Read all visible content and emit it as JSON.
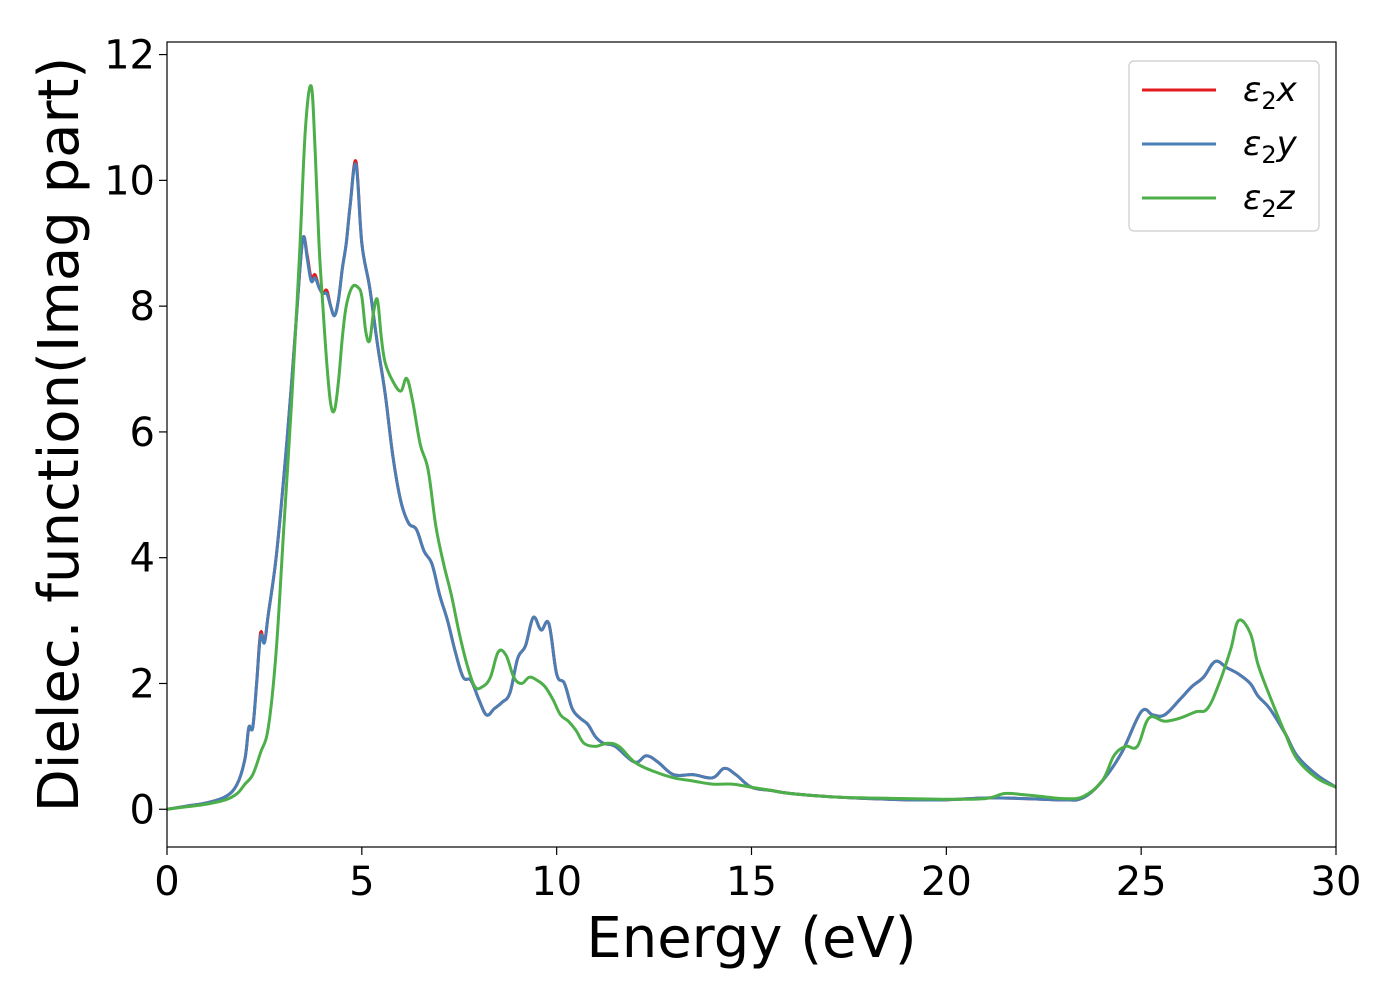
{
  "chart_data": {
    "type": "line",
    "xlabel": "Energy (eV)",
    "ylabel": "Dielec. function(Imag part)",
    "xlim": [
      0,
      30
    ],
    "ylim": [
      -0.6,
      12.2
    ],
    "xticks": [
      0,
      5,
      10,
      15,
      20,
      25,
      30
    ],
    "yticks": [
      0,
      2,
      4,
      6,
      8,
      10,
      12
    ],
    "grid": false,
    "legend_position": "top-right",
    "series": [
      {
        "name": "ε₂x",
        "legend_main": "ε",
        "legend_sub": "2",
        "legend_suffix": "x",
        "color": "#e41a1c",
        "x": [
          0,
          0.5,
          1,
          1.5,
          1.8,
          2,
          2.1,
          2.2,
          2.3,
          2.4,
          2.5,
          2.6,
          2.8,
          3,
          3.2,
          3.4,
          3.5,
          3.6,
          3.7,
          3.8,
          3.9,
          4,
          4.1,
          4.2,
          4.3,
          4.4,
          4.5,
          4.6,
          4.7,
          4.85,
          5,
          5.2,
          5.4,
          5.6,
          5.8,
          6,
          6.2,
          6.4,
          6.6,
          6.8,
          7,
          7.2,
          7.4,
          7.6,
          7.8,
          8,
          8.2,
          8.4,
          8.6,
          8.8,
          9,
          9.2,
          9.4,
          9.6,
          9.8,
          10,
          10.2,
          10.4,
          10.6,
          10.8,
          11,
          11.2,
          11.5,
          12,
          12.3,
          12.6,
          13,
          13.5,
          14,
          14.3,
          14.6,
          15,
          15.5,
          16,
          17,
          18,
          19,
          20,
          21,
          22,
          23,
          23.5,
          24,
          24.5,
          25,
          25.3,
          25.6,
          26,
          26.3,
          26.6,
          26.9,
          27.2,
          27.5,
          27.8,
          28,
          28.3,
          28.7,
          29,
          29.5,
          30
        ],
        "y": [
          0,
          0.05,
          0.1,
          0.2,
          0.4,
          0.8,
          1.3,
          1.3,
          2,
          2.8,
          2.65,
          3.1,
          4,
          5.3,
          6.8,
          8.5,
          9.1,
          8.8,
          8.45,
          8.5,
          8.3,
          8.2,
          8.25,
          8.0,
          7.85,
          8.1,
          8.6,
          9.0,
          9.6,
          10.3,
          9.0,
          8.3,
          7.4,
          6.6,
          5.6,
          4.9,
          4.55,
          4.45,
          4.1,
          3.9,
          3.4,
          3.0,
          2.5,
          2.1,
          2.05,
          1.75,
          1.5,
          1.6,
          1.7,
          1.85,
          2.4,
          2.6,
          3.05,
          2.85,
          2.95,
          2.15,
          2.0,
          1.6,
          1.45,
          1.35,
          1.15,
          1.05,
          1.0,
          0.75,
          0.85,
          0.75,
          0.55,
          0.55,
          0.5,
          0.65,
          0.55,
          0.35,
          0.3,
          0.25,
          0.2,
          0.17,
          0.15,
          0.15,
          0.18,
          0.17,
          0.15,
          0.18,
          0.45,
          0.9,
          1.55,
          1.5,
          1.5,
          1.75,
          1.95,
          2.1,
          2.35,
          2.25,
          2.15,
          2.0,
          1.8,
          1.6,
          1.2,
          0.85,
          0.55,
          0.35
        ]
      },
      {
        "name": "ε₂y",
        "legend_main": "ε",
        "legend_sub": "2",
        "legend_suffix": "y",
        "color": "#4a7fb5",
        "x": [
          0,
          0.5,
          1,
          1.5,
          1.8,
          2,
          2.1,
          2.2,
          2.3,
          2.4,
          2.5,
          2.6,
          2.8,
          3,
          3.2,
          3.4,
          3.5,
          3.6,
          3.7,
          3.8,
          3.9,
          4,
          4.1,
          4.2,
          4.3,
          4.4,
          4.5,
          4.6,
          4.7,
          4.85,
          5,
          5.2,
          5.4,
          5.6,
          5.8,
          6,
          6.2,
          6.4,
          6.6,
          6.8,
          7,
          7.2,
          7.4,
          7.6,
          7.8,
          8,
          8.2,
          8.4,
          8.6,
          8.8,
          9,
          9.2,
          9.4,
          9.6,
          9.8,
          10,
          10.2,
          10.4,
          10.6,
          10.8,
          11,
          11.2,
          11.5,
          12,
          12.3,
          12.6,
          13,
          13.5,
          14,
          14.3,
          14.6,
          15,
          15.5,
          16,
          17,
          18,
          19,
          20,
          21,
          22,
          23,
          23.5,
          24,
          24.5,
          25,
          25.3,
          25.6,
          26,
          26.3,
          26.6,
          26.9,
          27.2,
          27.5,
          27.8,
          28,
          28.3,
          28.7,
          29,
          29.5,
          30
        ],
        "y": [
          0,
          0.05,
          0.1,
          0.2,
          0.4,
          0.8,
          1.3,
          1.3,
          2,
          2.75,
          2.65,
          3.1,
          4,
          5.3,
          6.8,
          8.5,
          9.1,
          8.75,
          8.4,
          8.45,
          8.3,
          8.2,
          8.2,
          8.0,
          7.85,
          8.1,
          8.6,
          9.0,
          9.6,
          10.25,
          9.0,
          8.3,
          7.4,
          6.6,
          5.6,
          4.9,
          4.55,
          4.45,
          4.1,
          3.9,
          3.4,
          3.0,
          2.5,
          2.1,
          2.05,
          1.75,
          1.5,
          1.6,
          1.7,
          1.85,
          2.4,
          2.6,
          3.05,
          2.85,
          2.95,
          2.15,
          2.0,
          1.6,
          1.45,
          1.35,
          1.15,
          1.05,
          1.0,
          0.75,
          0.85,
          0.75,
          0.55,
          0.55,
          0.5,
          0.65,
          0.55,
          0.35,
          0.3,
          0.25,
          0.2,
          0.17,
          0.15,
          0.15,
          0.18,
          0.17,
          0.15,
          0.18,
          0.45,
          0.9,
          1.55,
          1.5,
          1.5,
          1.75,
          1.95,
          2.1,
          2.35,
          2.25,
          2.15,
          2.0,
          1.8,
          1.6,
          1.2,
          0.85,
          0.55,
          0.35
        ]
      },
      {
        "name": "ε₂z",
        "legend_main": "ε",
        "legend_sub": "2",
        "legend_suffix": "z",
        "color": "#4daf4a",
        "x": [
          0,
          0.5,
          1,
          1.5,
          1.8,
          2,
          2.2,
          2.4,
          2.6,
          2.8,
          3,
          3.2,
          3.4,
          3.55,
          3.7,
          3.8,
          3.9,
          4,
          4.1,
          4.2,
          4.3,
          4.4,
          4.5,
          4.6,
          4.75,
          4.9,
          5,
          5.1,
          5.2,
          5.3,
          5.4,
          5.5,
          5.6,
          5.8,
          6,
          6.15,
          6.3,
          6.5,
          6.7,
          6.9,
          7.1,
          7.3,
          7.5,
          7.7,
          7.9,
          8.1,
          8.3,
          8.5,
          8.7,
          8.9,
          9.1,
          9.3,
          9.5,
          9.7,
          9.9,
          10.1,
          10.3,
          10.5,
          10.7,
          11,
          11.3,
          11.6,
          12,
          12.5,
          13,
          13.5,
          14,
          14.5,
          15,
          15.5,
          16,
          17,
          18,
          19,
          20,
          21,
          21.5,
          22,
          22.5,
          23,
          23.5,
          24,
          24.3,
          24.6,
          24.9,
          25.2,
          25.6,
          26,
          26.4,
          26.7,
          27,
          27.3,
          27.5,
          27.8,
          28,
          28.3,
          28.7,
          29,
          29.5,
          30
        ],
        "y": [
          0,
          0.04,
          0.08,
          0.15,
          0.25,
          0.4,
          0.55,
          0.9,
          1.3,
          2.5,
          4.5,
          6.5,
          8.8,
          10.8,
          11.5,
          10.5,
          9.0,
          8.0,
          7.1,
          6.45,
          6.35,
          6.8,
          7.5,
          8.0,
          8.3,
          8.3,
          8.15,
          7.6,
          7.45,
          7.9,
          8.1,
          7.5,
          7.1,
          6.8,
          6.65,
          6.85,
          6.5,
          5.8,
          5.4,
          4.5,
          3.9,
          3.4,
          2.8,
          2.3,
          1.95,
          1.95,
          2.1,
          2.5,
          2.45,
          2.1,
          2.0,
          2.1,
          2.05,
          1.95,
          1.75,
          1.5,
          1.4,
          1.25,
          1.05,
          1.0,
          1.05,
          1.0,
          0.75,
          0.6,
          0.5,
          0.45,
          0.4,
          0.4,
          0.35,
          0.3,
          0.25,
          0.2,
          0.18,
          0.17,
          0.16,
          0.17,
          0.25,
          0.23,
          0.2,
          0.17,
          0.2,
          0.45,
          0.85,
          1.0,
          1.0,
          1.45,
          1.4,
          1.45,
          1.55,
          1.6,
          2.0,
          2.55,
          3.0,
          2.8,
          2.3,
          1.8,
          1.2,
          0.8,
          0.5,
          0.35
        ]
      }
    ]
  }
}
